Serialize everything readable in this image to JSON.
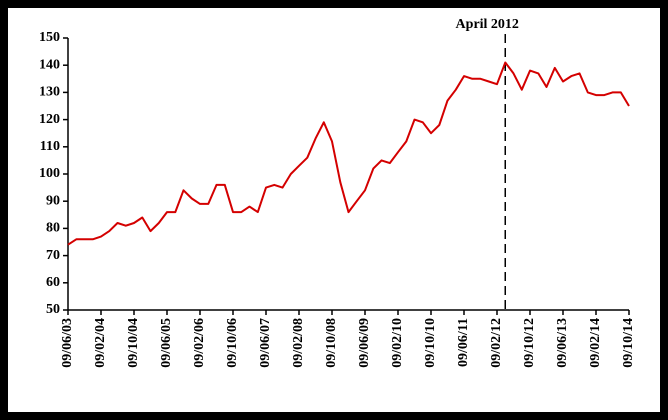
{
  "chart_data": {
    "type": "line",
    "x": [
      "09/06/03",
      "09/08/03",
      "09/10/03",
      "09/12/03",
      "09/02/04",
      "09/04/04",
      "09/06/04",
      "09/08/04",
      "09/10/04",
      "09/12/04",
      "09/02/05",
      "09/04/05",
      "09/06/05",
      "09/08/05",
      "09/10/05",
      "09/12/05",
      "09/02/06",
      "09/04/06",
      "09/06/06",
      "09/08/06",
      "09/10/06",
      "09/12/06",
      "09/02/07",
      "09/04/07",
      "09/06/07",
      "09/08/07",
      "09/10/07",
      "09/12/07",
      "09/02/08",
      "09/04/08",
      "09/06/08",
      "09/08/08",
      "09/10/08",
      "09/12/08",
      "09/02/09",
      "09/04/09",
      "09/06/09",
      "09/08/09",
      "09/10/09",
      "09/12/09",
      "09/02/10",
      "09/04/10",
      "09/06/10",
      "09/08/10",
      "09/10/10",
      "09/12/10",
      "09/02/11",
      "09/04/11",
      "09/06/11",
      "09/08/11",
      "09/10/11",
      "09/12/11",
      "09/02/12",
      "09/04/12",
      "09/06/12",
      "09/08/12",
      "09/10/12",
      "09/12/12",
      "09/02/13",
      "09/04/13",
      "09/06/13",
      "09/08/13",
      "09/10/13",
      "09/12/13",
      "09/02/14",
      "09/04/14",
      "09/06/14",
      "09/08/14",
      "09/10/14"
    ],
    "values": [
      74,
      76,
      76,
      76,
      77,
      79,
      82,
      81,
      82,
      84,
      79,
      82,
      86,
      86,
      94,
      91,
      89,
      89,
      96,
      96,
      86,
      86,
      88,
      86,
      95,
      96,
      95,
      100,
      103,
      106,
      113,
      119,
      112,
      97,
      86,
      90,
      94,
      102,
      105,
      104,
      108,
      112,
      120,
      119,
      115,
      118,
      127,
      131,
      136,
      135,
      135,
      134,
      133,
      141,
      137,
      131,
      138,
      137,
      132,
      139,
      134,
      136,
      137,
      130,
      129,
      129,
      130,
      130,
      125
    ],
    "color": "#d40000",
    "xlim": [
      "09/06/03",
      "09/10/14"
    ],
    "xticks": [
      "09/06/03",
      "09/02/04",
      "09/10/04",
      "09/06/05",
      "09/02/06",
      "09/10/06",
      "09/06/07",
      "09/02/08",
      "09/10/08",
      "09/06/09",
      "09/02/10",
      "09/10/10",
      "09/06/11",
      "09/02/12",
      "09/10/12",
      "09/06/13",
      "09/02/14",
      "09/10/14"
    ],
    "ylim": [
      50,
      150
    ],
    "yticks": [
      50,
      60,
      70,
      80,
      90,
      100,
      110,
      120,
      130,
      140,
      150
    ],
    "grid": false,
    "annotation": {
      "text": "April 2012",
      "x": "09/04/12"
    }
  }
}
